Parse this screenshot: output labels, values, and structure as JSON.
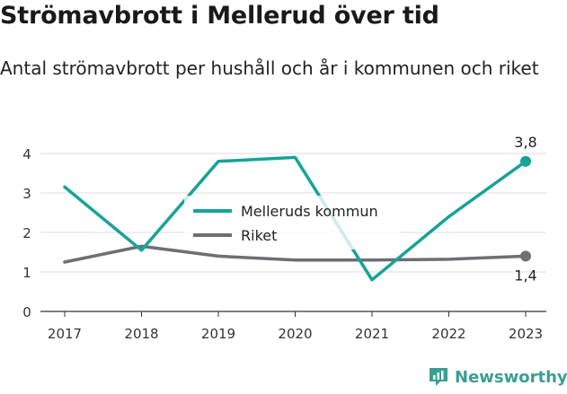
{
  "title": "Strömavbrott i Mellerud över tid",
  "subtitle": "Antal strömavbrott per hushåll och år i kommunen och riket",
  "brand": "Newsworthy",
  "chart_data": {
    "type": "line",
    "x": [
      "2017",
      "2018",
      "2019",
      "2020",
      "2021",
      "2022",
      "2023"
    ],
    "yticks": [
      "0",
      "1",
      "2",
      "3",
      "4"
    ],
    "ylim": [
      0,
      4.4
    ],
    "grid": true,
    "legend_position": "center",
    "series": [
      {
        "name": "Melleruds kommun",
        "color": "#17a398",
        "values": [
          3.15,
          1.55,
          3.8,
          3.9,
          0.8,
          2.4,
          3.8
        ],
        "end_label": "3,8"
      },
      {
        "name": "Riket",
        "color": "#6e6e73",
        "values": [
          1.25,
          1.65,
          1.4,
          1.3,
          1.3,
          1.32,
          1.4
        ],
        "end_label": "1,4"
      }
    ]
  }
}
